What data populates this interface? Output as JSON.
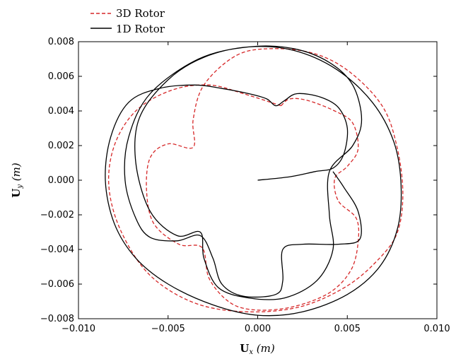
{
  "chart_data": {
    "type": "line",
    "title": "",
    "xlabel": "Ux (m)",
    "ylabel": "Uy (m)",
    "xlim": [
      -0.01,
      0.01
    ],
    "ylim": [
      -0.008,
      0.008
    ],
    "xticks": [
      "−0.010",
      "−0.005",
      "0.000",
      "0.005",
      "0.010"
    ],
    "yticks": [
      "−0.008",
      "−0.006",
      "−0.004",
      "−0.002",
      "0.000",
      "0.002",
      "0.004",
      "0.006",
      "0.008"
    ],
    "grid": false,
    "legend": "top-left, outside axes",
    "series": [
      {
        "name": "3D Rotor",
        "color": "#d62728",
        "style": "dashed",
        "points": [
          [
            0.0013,
            0.0043
          ],
          [
            0.0018,
            0.0047
          ],
          [
            0.0028,
            0.0046
          ],
          [
            0.0043,
            0.004
          ],
          [
            0.0053,
            0.0033
          ],
          [
            0.0056,
            0.0018
          ],
          [
            0.005,
            0.0008
          ],
          [
            0.0043,
            0.0001
          ],
          [
            0.0045,
            -0.0012
          ],
          [
            0.0055,
            -0.0022
          ],
          [
            0.0056,
            -0.0036
          ],
          [
            0.0052,
            -0.0052
          ],
          [
            0.004,
            -0.0065
          ],
          [
            0.002,
            -0.0073
          ],
          [
            0.0,
            -0.0075
          ],
          [
            -0.0015,
            -0.0071
          ],
          [
            -0.0027,
            -0.0057
          ],
          [
            -0.0031,
            -0.0039
          ],
          [
            -0.0044,
            -0.0037
          ],
          [
            -0.0058,
            -0.0025
          ],
          [
            -0.0062,
            -0.0006
          ],
          [
            -0.006,
            0.0013
          ],
          [
            -0.005,
            0.0021
          ],
          [
            -0.0036,
            0.0019
          ],
          [
            -0.0036,
            0.0035
          ],
          [
            -0.003,
            0.0055
          ],
          [
            -0.0012,
            0.0072
          ],
          [
            0.0008,
            0.0076
          ],
          [
            0.0032,
            0.0073
          ],
          [
            0.0052,
            0.0062
          ],
          [
            0.007,
            0.0042
          ],
          [
            0.0078,
            0.0018
          ],
          [
            0.0081,
            -0.0008
          ],
          [
            0.0078,
            -0.003
          ],
          [
            0.0068,
            -0.0045
          ],
          [
            0.005,
            -0.0061
          ],
          [
            0.0024,
            -0.0073
          ],
          [
            -0.0006,
            -0.0076
          ],
          [
            -0.0035,
            -0.0071
          ],
          [
            -0.006,
            -0.0055
          ],
          [
            -0.0076,
            -0.003
          ],
          [
            -0.0083,
            -0.0004
          ],
          [
            -0.008,
            0.002
          ],
          [
            -0.0068,
            0.004
          ],
          [
            -0.0048,
            0.0052
          ],
          [
            -0.0027,
            0.0055
          ],
          [
            -0.0008,
            0.005
          ],
          [
            0.0013,
            0.0043
          ]
        ]
      },
      {
        "name": "1D Rotor",
        "color": "#000000",
        "style": "solid",
        "points": [
          [
            0.0,
            0.0
          ],
          [
            0.0018,
            0.0002
          ],
          [
            0.0032,
            0.0005
          ],
          [
            0.0042,
            0.0007
          ],
          [
            0.0048,
            0.0015
          ],
          [
            0.005,
            0.003
          ],
          [
            0.0045,
            0.0042
          ],
          [
            0.0035,
            0.0048
          ],
          [
            0.0022,
            0.005
          ],
          [
            0.0015,
            0.0046
          ],
          [
            0.001,
            0.0043
          ],
          [
            0.0005,
            0.0047
          ],
          [
            -0.0005,
            0.005
          ],
          [
            -0.002,
            0.0053
          ],
          [
            -0.0035,
            0.0055
          ],
          [
            -0.0055,
            0.0053
          ],
          [
            -0.0072,
            0.0045
          ],
          [
            -0.0082,
            0.0025
          ],
          [
            -0.0085,
            0.0
          ],
          [
            -0.008,
            -0.0025
          ],
          [
            -0.0068,
            -0.0045
          ],
          [
            -0.005,
            -0.006
          ],
          [
            -0.0025,
            -0.0072
          ],
          [
            0.0,
            -0.0078
          ],
          [
            0.0025,
            -0.0076
          ],
          [
            0.005,
            -0.0066
          ],
          [
            0.0068,
            -0.005
          ],
          [
            0.0078,
            -0.0028
          ],
          [
            0.008,
            -0.0003
          ],
          [
            0.0076,
            0.0022
          ],
          [
            0.0064,
            0.0045
          ],
          [
            0.0044,
            0.0064
          ],
          [
            0.002,
            0.0075
          ],
          [
            -0.0005,
            0.0077
          ],
          [
            -0.003,
            0.0071
          ],
          [
            -0.005,
            0.0058
          ],
          [
            -0.0066,
            0.0036
          ],
          [
            -0.0068,
            0.001
          ],
          [
            -0.006,
            -0.0018
          ],
          [
            -0.0045,
            -0.0032
          ],
          [
            -0.0032,
            -0.003
          ],
          [
            -0.003,
            -0.0045
          ],
          [
            -0.0022,
            -0.0062
          ],
          [
            -0.0005,
            -0.0068
          ],
          [
            0.0015,
            -0.0068
          ],
          [
            0.0033,
            -0.0058
          ],
          [
            0.0042,
            -0.004
          ],
          [
            0.004,
            -0.002
          ],
          [
            0.004,
            0.0005
          ],
          [
            0.0053,
            0.002
          ],
          [
            0.0058,
            0.0035
          ],
          [
            0.0053,
            0.0055
          ],
          [
            0.004,
            0.0068
          ],
          [
            0.002,
            0.0076
          ],
          [
            -0.0005,
            0.0077
          ],
          [
            -0.0033,
            0.007
          ],
          [
            -0.006,
            0.005
          ],
          [
            -0.0072,
            0.0025
          ],
          [
            -0.0074,
            0.0
          ],
          [
            -0.0068,
            -0.0022
          ],
          [
            -0.006,
            -0.0033
          ],
          [
            -0.0045,
            -0.0035
          ],
          [
            -0.0032,
            -0.0032
          ],
          [
            -0.0025,
            -0.0045
          ],
          [
            -0.002,
            -0.006
          ],
          [
            -0.0008,
            -0.0067
          ],
          [
            0.001,
            -0.0066
          ],
          [
            0.0014,
            -0.0058
          ],
          [
            0.0014,
            -0.004
          ],
          [
            0.0025,
            -0.0037
          ],
          [
            0.0045,
            -0.0037
          ],
          [
            0.0057,
            -0.0034
          ],
          [
            0.0056,
            -0.0018
          ],
          [
            0.0048,
            -0.0004
          ],
          [
            0.0042,
            0.0005
          ]
        ]
      }
    ]
  }
}
